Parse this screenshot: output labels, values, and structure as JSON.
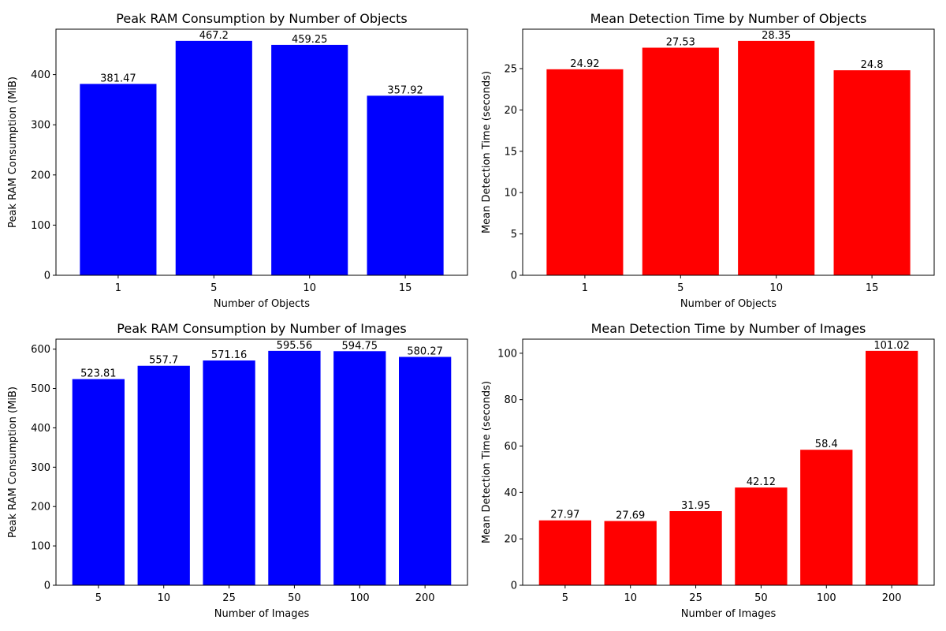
{
  "chart_data": [
    {
      "type": "bar",
      "title": "Peak RAM Consumption by Number of Objects",
      "xlabel": "Number of Objects",
      "ylabel": "Peak RAM Consumption (MiB)",
      "categories": [
        "1",
        "5",
        "10",
        "15"
      ],
      "values": [
        381.47,
        467.2,
        459.25,
        357.92
      ],
      "data_labels": [
        "381.47",
        "467.2",
        "459.25",
        "357.92"
      ],
      "color": "#0000ff",
      "ylim": [
        0,
        490.56
      ],
      "yticks": [
        0,
        100,
        200,
        300,
        400
      ],
      "grid": false
    },
    {
      "type": "bar",
      "title": "Mean Detection Time by Number of Objects",
      "xlabel": "Number of Objects",
      "ylabel": "Mean Detection Time (seconds)",
      "categories": [
        "1",
        "5",
        "10",
        "15"
      ],
      "values": [
        24.92,
        27.53,
        28.35,
        24.8
      ],
      "data_labels": [
        "24.92",
        "27.53",
        "28.35",
        "24.8"
      ],
      "color": "#ff0000",
      "ylim": [
        0,
        29.77
      ],
      "yticks": [
        0,
        5,
        10,
        15,
        20,
        25
      ],
      "grid": false
    },
    {
      "type": "bar",
      "title": "Peak RAM Consumption by Number of Images",
      "xlabel": "Number of Images",
      "ylabel": "Peak RAM Consumption (MiB)",
      "categories": [
        "5",
        "10",
        "25",
        "50",
        "100",
        "200"
      ],
      "values": [
        523.81,
        557.7,
        571.16,
        595.56,
        594.75,
        580.27
      ],
      "data_labels": [
        "523.81",
        "557.7",
        "571.16",
        "595.56",
        "594.75",
        "580.27"
      ],
      "color": "#0000ff",
      "ylim": [
        0,
        625.34
      ],
      "yticks": [
        0,
        100,
        200,
        300,
        400,
        500,
        600
      ],
      "grid": false
    },
    {
      "type": "bar",
      "title": "Mean Detection Time by Number of Images",
      "xlabel": "Number of Images",
      "ylabel": "Mean Detection Time (seconds)",
      "categories": [
        "5",
        "10",
        "25",
        "50",
        "100",
        "200"
      ],
      "values": [
        27.97,
        27.69,
        31.95,
        42.12,
        58.4,
        101.02
      ],
      "data_labels": [
        "27.97",
        "27.69",
        "31.95",
        "42.12",
        "58.4",
        "101.02"
      ],
      "color": "#ff0000",
      "ylim": [
        0,
        106.07
      ],
      "yticks": [
        0,
        20,
        40,
        60,
        80,
        100
      ],
      "grid": false
    }
  ]
}
